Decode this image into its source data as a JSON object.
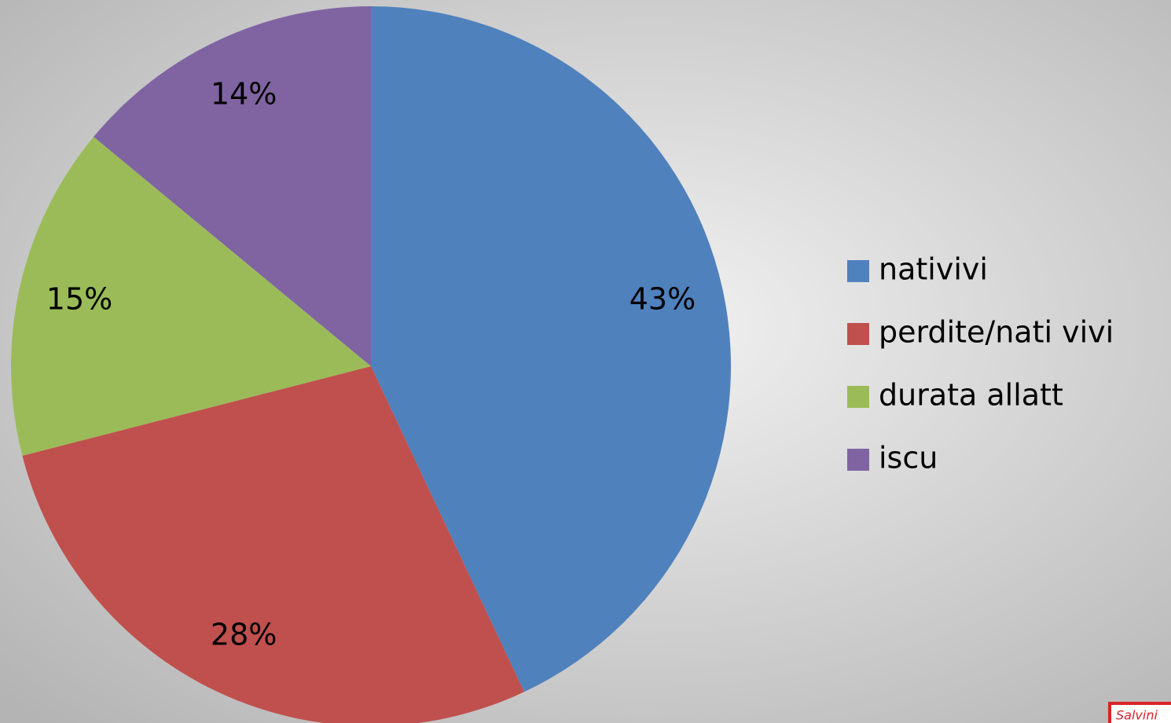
{
  "chart_data": {
    "type": "pie",
    "categories": [
      "nativivi",
      "perdite/nati vivi",
      "durata allatt",
      "iscu"
    ],
    "values": [
      43,
      28,
      15,
      14
    ],
    "value_labels": [
      "43%",
      "28%",
      "15%",
      "14%"
    ],
    "colors": [
      "#4f81bd",
      "#c0504d",
      "#9bbb59",
      "#8064a2"
    ],
    "legend": "right"
  },
  "logo": "Salvini"
}
